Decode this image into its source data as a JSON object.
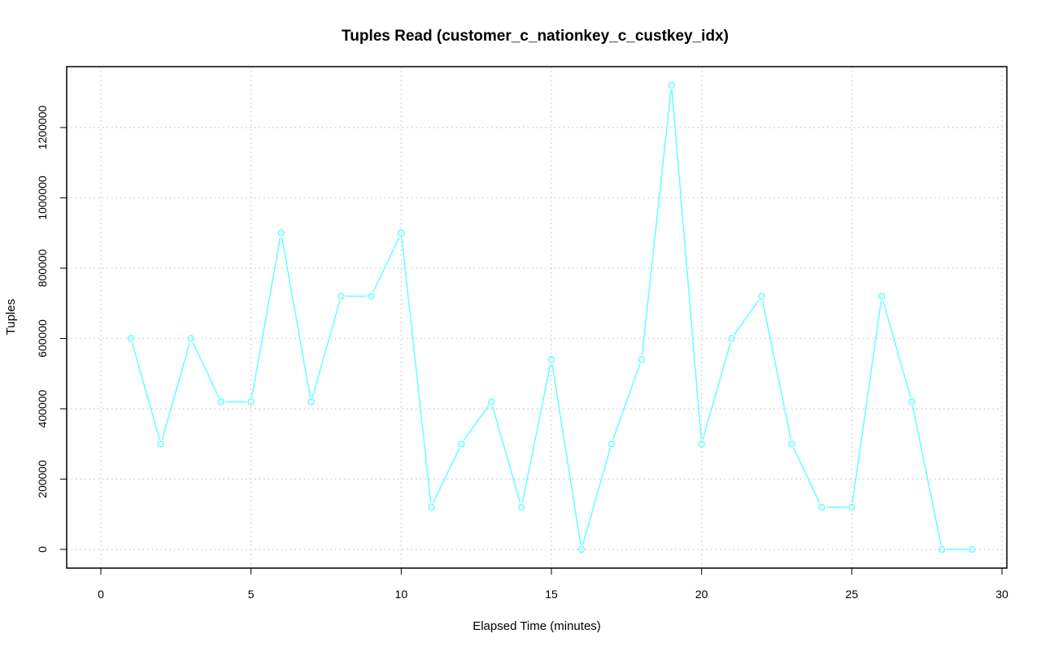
{
  "chart_data": {
    "type": "line",
    "title": "Tuples Read (customer_c_nationkey_c_custkey_idx)",
    "xlabel": "Elapsed Time (minutes)",
    "ylabel": "Tuples",
    "xlim": [
      0,
      30
    ],
    "ylim": [
      0,
      1320000
    ],
    "xticks": [
      0,
      5,
      10,
      15,
      20,
      25,
      30
    ],
    "yticks": [
      0,
      200000,
      400000,
      600000,
      800000,
      1000000,
      1200000
    ],
    "x_tick_labels": [
      "0",
      "5",
      "10",
      "15",
      "20",
      "25",
      "30"
    ],
    "y_tick_labels": [
      "0",
      "200000",
      "400000",
      "600000",
      "800000",
      "1000000",
      "1200000"
    ],
    "grid": true,
    "series": [
      {
        "color": "#66ffff",
        "marker": "open-circle",
        "x": [
          1,
          2,
          3,
          4,
          5,
          6,
          7,
          8,
          9,
          10,
          11,
          12,
          13,
          14,
          15,
          16,
          17,
          18,
          19,
          20,
          21,
          22,
          23,
          24,
          25,
          26,
          27,
          28,
          29
        ],
        "values": [
          600000,
          300000,
          600000,
          420000,
          420000,
          900000,
          420000,
          720000,
          720000,
          900000,
          120000,
          300000,
          420000,
          120000,
          540000,
          0,
          300000,
          540000,
          1320000,
          300000,
          600000,
          720000,
          300000,
          120000,
          120000,
          720000,
          420000,
          0,
          0
        ]
      }
    ]
  }
}
